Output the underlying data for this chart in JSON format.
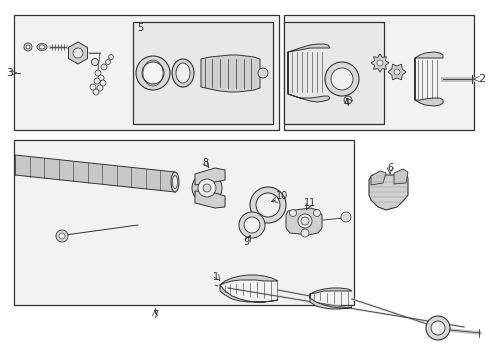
{
  "bg_color": "#ffffff",
  "lc": "#333333",
  "gray_fill": "#d8d8d8",
  "light_fill": "#eeeeee",
  "box_fill": "#ebebeb",
  "white": "#ffffff"
}
